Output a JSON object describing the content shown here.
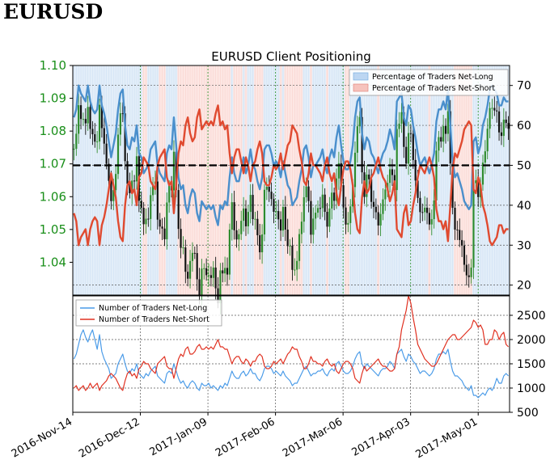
{
  "heading": "EURUSD",
  "chart_data": [
    {
      "type": "line",
      "title": "EURUSD Client Positioning",
      "y_left": {
        "ticks": [
          "1.10",
          "1.09",
          "1.08",
          "1.07",
          "1.06",
          "1.05",
          "1.04"
        ],
        "range": [
          1.03,
          1.1
        ],
        "color": "#1a8f1a"
      },
      "y_right": {
        "ticks": [
          "70",
          "60",
          "50",
          "40",
          "30",
          "20"
        ],
        "range": [
          17.5,
          75
        ]
      },
      "x_ticks": [
        "2016-Nov-14",
        "2016-Dec-12",
        "2017-Jan-09",
        "2017-Feb-06",
        "2017-Mar-06",
        "2017-Apr-03",
        "2017-May-01"
      ],
      "x_tick_days": [
        0,
        28,
        56,
        84,
        112,
        140,
        168
      ],
      "x_range": [
        0,
        181
      ],
      "grid": true,
      "legend": {
        "position": "top-right",
        "entries": [
          "Percentage of Traders Net-Long",
          "Percentage of Traders Net-Short"
        ]
      },
      "reference_line": 50,
      "series": [
        {
          "name": "Percentage of Traders Net-Long",
          "color": "#4a8fcc",
          "values": [
            62,
            64,
            70,
            68,
            67,
            66,
            70,
            66,
            64,
            63,
            64,
            70,
            65,
            63,
            60,
            56,
            52,
            55,
            58,
            64,
            68,
            69,
            60,
            55,
            54,
            57,
            56,
            60,
            53,
            52,
            48,
            49,
            50,
            54,
            55,
            56,
            50,
            48,
            47,
            46,
            53,
            55,
            54,
            62,
            55,
            47,
            44,
            45,
            40,
            38,
            42,
            44,
            43,
            38,
            36,
            41,
            40,
            39,
            40,
            39,
            40,
            37,
            35,
            40,
            39,
            41,
            40,
            47,
            52,
            48,
            46,
            46,
            49,
            52,
            48,
            50,
            54,
            50,
            49,
            46,
            44,
            47,
            54,
            55,
            55,
            53,
            50,
            51,
            50,
            47,
            51,
            48,
            45,
            44,
            40,
            41,
            42,
            46,
            49,
            54,
            55,
            52,
            47,
            50,
            50,
            51,
            52,
            54,
            50,
            48,
            52,
            54,
            52,
            57,
            60,
            55,
            51,
            49,
            49,
            51,
            55,
            62,
            66,
            67,
            58,
            54,
            57,
            56,
            53,
            52,
            50,
            48,
            51,
            53,
            54,
            56,
            59,
            57,
            54,
            66,
            67,
            68,
            62,
            60,
            65,
            64,
            60,
            57,
            53,
            50,
            51,
            52,
            50,
            48,
            50,
            53,
            61,
            64,
            64,
            66,
            64,
            69,
            60,
            51,
            47,
            48,
            46,
            44,
            41,
            40,
            39,
            40,
            56,
            57,
            53,
            55,
            60,
            62,
            65,
            69,
            70,
            69,
            68,
            65,
            65,
            67,
            66,
            66
          ]
        },
        {
          "name": "Percentage of Traders Net-Short",
          "color": "#e04a30",
          "values": [
            38,
            36,
            30,
            32,
            33,
            34,
            30,
            34,
            36,
            37,
            36,
            30,
            35,
            37,
            40,
            44,
            48,
            45,
            42,
            36,
            32,
            31,
            40,
            45,
            46,
            43,
            44,
            40,
            47,
            48,
            52,
            51,
            50,
            46,
            45,
            44,
            50,
            52,
            53,
            54,
            47,
            45,
            46,
            38,
            45,
            53,
            56,
            55,
            60,
            62,
            58,
            56,
            57,
            62,
            64,
            59,
            60,
            61,
            60,
            61,
            60,
            63,
            65,
            60,
            61,
            59,
            60,
            53,
            48,
            52,
            54,
            54,
            51,
            48,
            52,
            50,
            46,
            50,
            51,
            54,
            56,
            53,
            46,
            45,
            45,
            47,
            50,
            49,
            50,
            53,
            49,
            52,
            55,
            56,
            60,
            59,
            58,
            54,
            51,
            46,
            45,
            48,
            53,
            50,
            50,
            49,
            48,
            46,
            50,
            52,
            48,
            46,
            48,
            43,
            40,
            45,
            49,
            51,
            51,
            49,
            45,
            38,
            34,
            33,
            42,
            46,
            43,
            44,
            47,
            48,
            50,
            52,
            49,
            47,
            46,
            44,
            41,
            43,
            46,
            34,
            33,
            32,
            38,
            40,
            35,
            36,
            40,
            43,
            47,
            50,
            49,
            48,
            50,
            52,
            50,
            47,
            39,
            36,
            36,
            34,
            36,
            31,
            40,
            49,
            53,
            52,
            54,
            56,
            59,
            60,
            61,
            60,
            44,
            43,
            47,
            45,
            40,
            38,
            35,
            31,
            30,
            31,
            32,
            35,
            35,
            33,
            34,
            34
          ]
        }
      ]
    },
    {
      "type": "line",
      "y_right": {
        "ticks": [
          "2500",
          "2000",
          "1500",
          "1000",
          "500"
        ],
        "range": [
          500,
          2900
        ]
      },
      "x_range": [
        0,
        181
      ],
      "grid": true,
      "legend": {
        "position": "top-left",
        "entries": [
          "Number of Traders Net-Long",
          "Number of Traders Net-Short"
        ]
      },
      "series": [
        {
          "name": "Number of Traders Net-Long",
          "color": "#4a9be8",
          "values": [
            1600,
            1700,
            1900,
            2100,
            2200,
            2050,
            1950,
            2100,
            2200,
            2000,
            1800,
            2100,
            1750,
            1600,
            1500,
            1400,
            1200,
            1250,
            1300,
            1500,
            1600,
            1700,
            1500,
            1350,
            1300,
            1400,
            1350,
            1500,
            1300,
            1250,
            1200,
            1300,
            1250,
            1350,
            1400,
            1450,
            1250,
            1200,
            1150,
            1100,
            1300,
            1350,
            1300,
            1500,
            1350,
            1200,
            1100,
            1150,
            1050,
            1000,
            1100,
            1150,
            1100,
            1000,
            950,
            1100,
            1050,
            1050,
            1100,
            1000,
            1050,
            1000,
            950,
            1050,
            1000,
            1100,
            1050,
            1200,
            1350,
            1250,
            1200,
            1200,
            1300,
            1350,
            1250,
            1300,
            1400,
            1300,
            1300,
            1200,
            1150,
            1250,
            1400,
            1450,
            1450,
            1400,
            1300,
            1350,
            1300,
            1250,
            1350,
            1250,
            1200,
            1150,
            1050,
            1100,
            1100,
            1200,
            1300,
            1400,
            1450,
            1350,
            1250,
            1300,
            1300,
            1350,
            1350,
            1400,
            1300,
            1250,
            1350,
            1400,
            1350,
            1500,
            1550,
            1450,
            1350,
            1300,
            1300,
            1350,
            1450,
            1600,
            1700,
            1750,
            1500,
            1400,
            1500,
            1450,
            1400,
            1350,
            1300,
            1250,
            1350,
            1400,
            1400,
            1450,
            1550,
            1500,
            1400,
            1700,
            1750,
            1800,
            1650,
            1550,
            1700,
            1650,
            1550,
            1500,
            1400,
            1300,
            1350,
            1350,
            1300,
            1250,
            1300,
            1400,
            1600,
            1700,
            1700,
            1750,
            1700,
            1800,
            1550,
            1350,
            1250,
            1250,
            1200,
            1150,
            1050,
            1000,
            950,
            1050,
            850,
            850,
            800,
            850,
            900,
            850,
            950,
            1000,
            950,
            1050,
            1200,
            1100,
            1100,
            1250,
            1300,
            1250
          ]
        },
        {
          "name": "Number of Traders Net-Short",
          "color": "#e03020",
          "values": [
            1000,
            1050,
            950,
            1000,
            1050,
            950,
            1000,
            1100,
            1000,
            1050,
            1100,
            950,
            1050,
            1100,
            1150,
            1250,
            1300,
            1250,
            1200,
            1100,
            1000,
            950,
            1150,
            1300,
            1350,
            1250,
            1300,
            1200,
            1400,
            1450,
            1550,
            1500,
            1500,
            1400,
            1350,
            1300,
            1500,
            1550,
            1600,
            1650,
            1450,
            1400,
            1400,
            1200,
            1400,
            1600,
            1700,
            1650,
            1800,
            1850,
            1700,
            1700,
            1750,
            1850,
            1900,
            1800,
            1800,
            1850,
            1800,
            1850,
            1800,
            1900,
            2000,
            1850,
            1850,
            1800,
            1800,
            1650,
            1500,
            1600,
            1650,
            1650,
            1550,
            1500,
            1600,
            1550,
            1450,
            1550,
            1550,
            1650,
            1700,
            1650,
            1450,
            1400,
            1400,
            1450,
            1550,
            1500,
            1550,
            1600,
            1500,
            1600,
            1700,
            1750,
            1850,
            1800,
            1800,
            1650,
            1550,
            1400,
            1400,
            1500,
            1650,
            1550,
            1550,
            1500,
            1500,
            1450,
            1550,
            1600,
            1500,
            1450,
            1500,
            1350,
            1300,
            1400,
            1500,
            1550,
            1550,
            1500,
            1400,
            1200,
            1150,
            1100,
            1300,
            1450,
            1350,
            1400,
            1450,
            1500,
            1550,
            1600,
            1500,
            1450,
            1450,
            1400,
            1350,
            1350,
            1400,
            1700,
            1850,
            2200,
            2400,
            2600,
            2900,
            2750,
            2450,
            2200,
            1900,
            1800,
            1700,
            1600,
            1550,
            1500,
            1450,
            1450,
            1500,
            1600,
            1700,
            1800,
            1900,
            2000,
            2050,
            2100,
            2100,
            2000,
            2000,
            2050,
            2100,
            2150,
            2200,
            2250,
            2400,
            2350,
            2250,
            2300,
            2200,
            1900,
            1900,
            2000,
            2000,
            2200,
            2150,
            2000,
            2100,
            2150,
            1900,
            1850
          ]
        }
      ]
    }
  ]
}
